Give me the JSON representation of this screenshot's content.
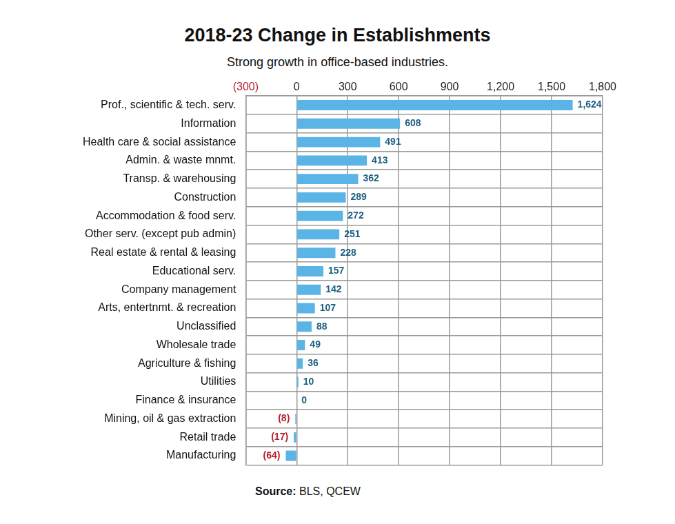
{
  "chart_data": {
    "type": "bar",
    "title": "2018-23 Change in Establishments",
    "subtitle": "Strong growth in office-based industries.",
    "source": "Source: BLS, QCEW",
    "orientation": "horizontal",
    "categories": [
      "Prof., scientific & tech. serv.",
      "Information",
      "Health care & social assistance",
      "Admin. & waste mnmt.",
      "Transp. & warehousing",
      "Construction",
      "Accommodation & food serv.",
      "Other serv. (except pub admin)",
      "Real estate & rental & leasing",
      "Educational serv.",
      "Company management",
      "Arts, entertnmt. & recreation",
      "Unclassified",
      "Wholesale trade",
      "Agriculture & fishing",
      "Utilities",
      "Finance & insurance",
      "Mining, oil & gas extraction",
      "Retail trade",
      "Manufacturing"
    ],
    "values": [
      1624,
      608,
      491,
      413,
      362,
      289,
      272,
      251,
      228,
      157,
      142,
      107,
      88,
      49,
      36,
      10,
      0,
      -8,
      -17,
      -64
    ],
    "value_labels": [
      "1,624",
      "608",
      "491",
      "413",
      "362",
      "289",
      "272",
      "251",
      "228",
      "157",
      "142",
      "107",
      "88",
      "49",
      "36",
      "10",
      "0",
      "(8)",
      "(17)",
      "(64)"
    ],
    "color": "#5ab4e5",
    "xlim": [
      -300,
      1800
    ],
    "xticks": [
      {
        "value": -300,
        "label": "(300)"
      },
      0,
      300,
      600,
      900,
      {
        "value": 1200,
        "label": "1,200"
      },
      {
        "value": 1500,
        "label": "1,500"
      },
      {
        "value": 1800,
        "label": "1,800"
      }
    ],
    "grid": true,
    "data_labels": true
  }
}
